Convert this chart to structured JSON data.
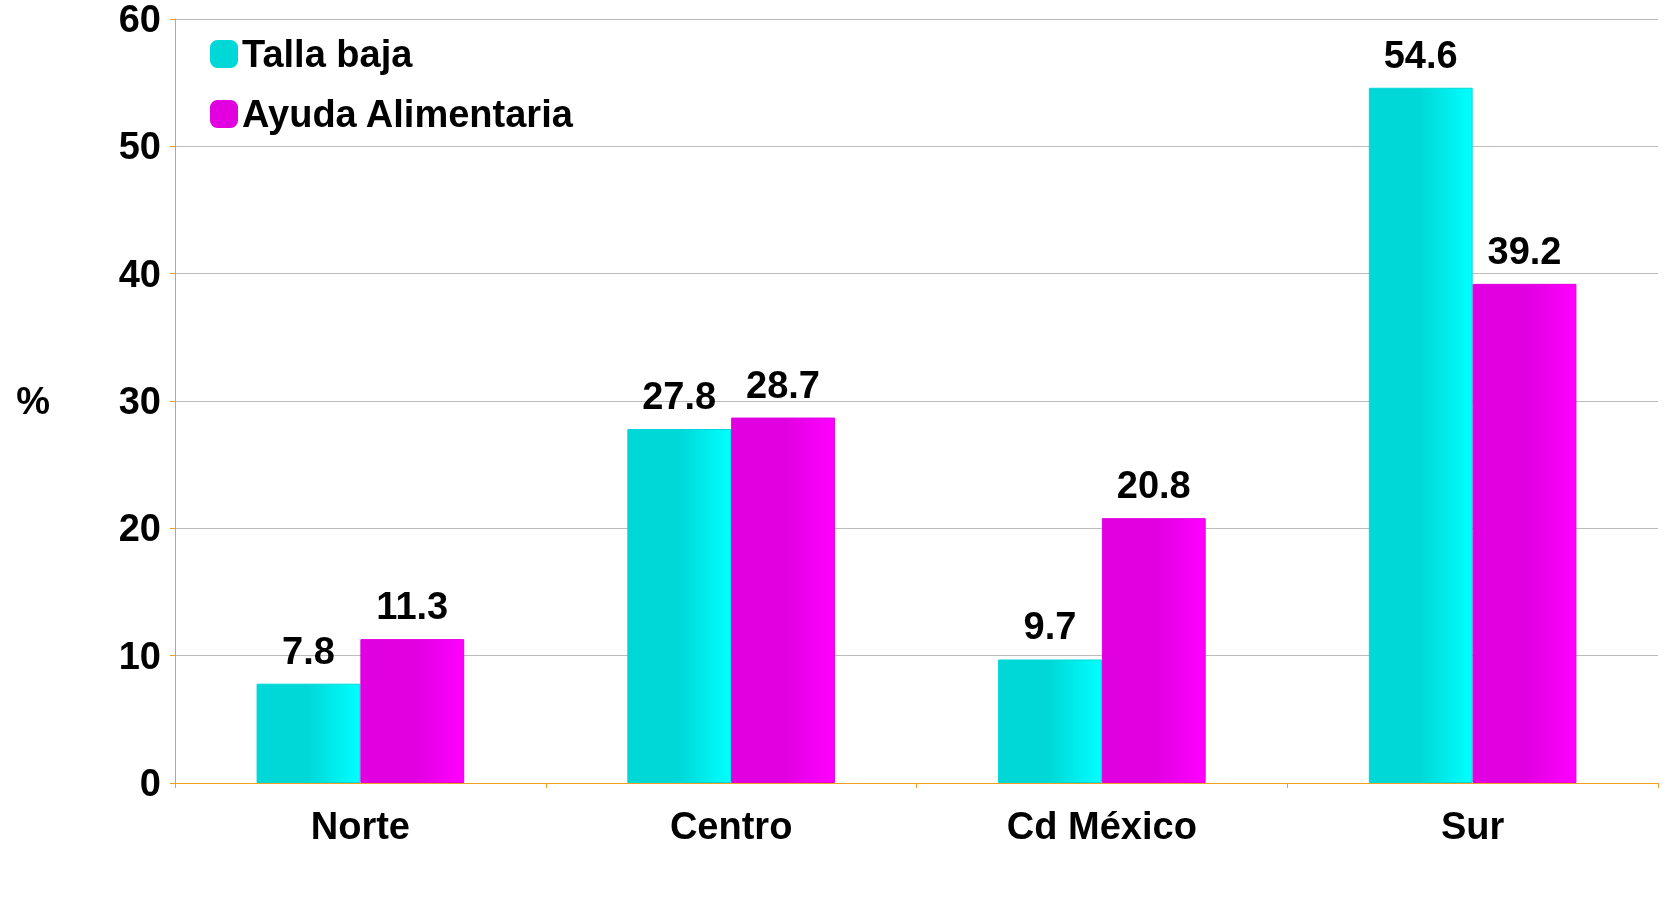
{
  "chart_data": {
    "type": "bar",
    "ylabel": "%",
    "categories": [
      "Norte",
      "Centro",
      "Cd México",
      "Sur"
    ],
    "series": [
      {
        "name": "Talla baja",
        "color": "#00d8d8",
        "values": [
          7.8,
          27.8,
          9.7,
          54.6
        ]
      },
      {
        "name": "Ayuda Alimentaria",
        "color": "#e000e0",
        "values": [
          11.3,
          28.7,
          20.8,
          39.2
        ]
      }
    ],
    "ylim": [
      0,
      60
    ],
    "yticks": [
      0,
      10,
      20,
      30,
      40,
      50,
      60
    ],
    "grid": "y",
    "legend": "top left",
    "data_labels": true
  }
}
